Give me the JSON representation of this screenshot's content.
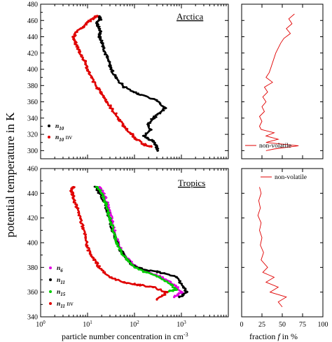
{
  "chart_data": [
    {
      "id": "arctica_main",
      "type": "scatter",
      "title": "Arctica",
      "xscale": "log",
      "xlim": [
        1,
        10000
      ],
      "ylim": [
        290,
        480
      ],
      "yticks": [
        300,
        320,
        340,
        360,
        380,
        400,
        420,
        440,
        460,
        480
      ],
      "legend_placement": "bottom-left",
      "series": [
        {
          "name": "n10",
          "name_sub": "10",
          "color": "#000000",
          "points": [
            [
              18,
              465
            ],
            [
              19,
              462
            ],
            [
              16,
              458
            ],
            [
              17,
              452
            ],
            [
              19,
              446
            ],
            [
              18,
              440
            ],
            [
              20,
              434
            ],
            [
              22,
              428
            ],
            [
              24,
              420
            ],
            [
              28,
              410
            ],
            [
              32,
              400
            ],
            [
              40,
              390
            ],
            [
              60,
              378
            ],
            [
              120,
              370
            ],
            [
              300,
              362
            ],
            [
              450,
              352
            ],
            [
              350,
              346
            ],
            [
              250,
              340
            ],
            [
              200,
              332
            ],
            [
              220,
              326
            ],
            [
              160,
              318
            ],
            [
              240,
              312
            ],
            [
              300,
              306
            ],
            [
              310,
              300
            ]
          ]
        },
        {
          "name": "n10 nv",
          "name_sub": "10",
          "name_suffix": "nv",
          "color": "#e00000",
          "points": [
            [
              16,
              465
            ],
            [
              13,
              462
            ],
            [
              10,
              458
            ],
            [
              8,
              452
            ],
            [
              6,
              446
            ],
            [
              5,
              440
            ],
            [
              5.5,
              432
            ],
            [
              6.5,
              424
            ],
            [
              7.5,
              416
            ],
            [
              9,
              408
            ],
            [
              10,
              400
            ],
            [
              12,
              390
            ],
            [
              15,
              380
            ],
            [
              20,
              370
            ],
            [
              26,
              360
            ],
            [
              34,
              350
            ],
            [
              45,
              340
            ],
            [
              60,
              330
            ],
            [
              80,
              322
            ],
            [
              110,
              314
            ],
            [
              150,
              308
            ],
            [
              230,
              305
            ]
          ]
        }
      ]
    },
    {
      "id": "arctica_fraction",
      "type": "line",
      "xlim": [
        0,
        100
      ],
      "ylim": [
        290,
        480
      ],
      "legend_placement": "bottom-right",
      "series": [
        {
          "name": "non-volatile",
          "color": "#e00000",
          "points": [
            [
              65,
              468
            ],
            [
              58,
              462
            ],
            [
              62,
              456
            ],
            [
              55,
              450
            ],
            [
              60,
              444
            ],
            [
              52,
              438
            ],
            [
              48,
              432
            ],
            [
              45,
              426
            ],
            [
              42,
              420
            ],
            [
              40,
              414
            ],
            [
              38,
              408
            ],
            [
              36,
              402
            ],
            [
              34,
              396
            ],
            [
              30,
              390
            ],
            [
              38,
              384
            ],
            [
              28,
              378
            ],
            [
              32,
              372
            ],
            [
              26,
              366
            ],
            [
              30,
              360
            ],
            [
              25,
              354
            ],
            [
              28,
              348
            ],
            [
              22,
              342
            ],
            [
              25,
              336
            ],
            [
              22,
              330
            ],
            [
              24,
              326
            ],
            [
              40,
              322
            ],
            [
              30,
              318
            ],
            [
              45,
              314
            ],
            [
              30,
              310
            ],
            [
              70,
              306
            ],
            [
              40,
              302
            ],
            [
              30,
              300
            ]
          ]
        }
      ]
    },
    {
      "id": "tropics_main",
      "type": "scatter",
      "title": "Tropics",
      "xscale": "log",
      "xlim": [
        1,
        10000
      ],
      "ylim": [
        340,
        460
      ],
      "yticks": [
        340,
        360,
        380,
        400,
        420,
        440,
        460
      ],
      "legend_placement": "bottom-left",
      "series": [
        {
          "name": "n6",
          "name_sub": "6",
          "color": "#e000e0",
          "points": [
            [
              18,
              445
            ],
            [
              22,
              440
            ],
            [
              26,
              432
            ],
            [
              30,
              424
            ],
            [
              34,
              416
            ],
            [
              38,
              408
            ],
            [
              44,
              400
            ],
            [
              55,
              392
            ],
            [
              75,
              386
            ],
            [
              110,
              380
            ],
            [
              200,
              376
            ],
            [
              400,
              372
            ],
            [
              700,
              366
            ],
            [
              1000,
              360
            ],
            [
              700,
              356
            ]
          ]
        },
        {
          "name": "n11",
          "name_sub": "11",
          "color": "#000000",
          "points": [
            [
              15,
              445
            ],
            [
              18,
              440
            ],
            [
              22,
              434
            ],
            [
              26,
              426
            ],
            [
              30,
              418
            ],
            [
              34,
              410
            ],
            [
              40,
              402
            ],
            [
              50,
              394
            ],
            [
              65,
              388
            ],
            [
              90,
              382
            ],
            [
              150,
              378
            ],
            [
              350,
              376
            ],
            [
              800,
              372
            ],
            [
              1100,
              364
            ],
            [
              1300,
              360
            ],
            [
              900,
              356
            ]
          ]
        },
        {
          "name": "n15",
          "name_sub": "15",
          "color": "#00cc00",
          "points": [
            [
              16,
              445
            ],
            [
              20,
              440
            ],
            [
              24,
              432
            ],
            [
              28,
              424
            ],
            [
              32,
              416
            ],
            [
              36,
              408
            ],
            [
              42,
              400
            ],
            [
              52,
              392
            ],
            [
              70,
              386
            ],
            [
              100,
              380
            ],
            [
              180,
              376
            ],
            [
              350,
              372
            ],
            [
              600,
              366
            ],
            [
              800,
              362
            ],
            [
              500,
              360
            ]
          ]
        },
        {
          "name": "n11 nv",
          "name_sub": "11",
          "name_suffix": "nv",
          "color": "#e00000",
          "points": [
            [
              5,
              445
            ],
            [
              4.5,
              442
            ],
            [
              5,
              436
            ],
            [
              6,
              428
            ],
            [
              7,
              420
            ],
            [
              8,
              412
            ],
            [
              9,
              404
            ],
            [
              10,
              396
            ],
            [
              12,
              390
            ],
            [
              15,
              384
            ],
            [
              20,
              378
            ],
            [
              30,
              372
            ],
            [
              60,
              368
            ],
            [
              120,
              366
            ],
            [
              250,
              364
            ],
            [
              500,
              360
            ],
            [
              300,
              354
            ]
          ]
        }
      ]
    },
    {
      "id": "tropics_fraction",
      "type": "line",
      "xlabel": "fraction f in %",
      "xlim": [
        0,
        100
      ],
      "xticks": [
        0,
        25,
        50,
        75,
        100
      ],
      "ylim": [
        340,
        460
      ],
      "legend_placement": "top-right",
      "series": [
        {
          "name": "non-volatile",
          "color": "#e00000",
          "points": [
            [
              22,
              445
            ],
            [
              24,
              440
            ],
            [
              21,
              434
            ],
            [
              23,
              428
            ],
            [
              20,
              422
            ],
            [
              24,
              416
            ],
            [
              22,
              410
            ],
            [
              25,
              404
            ],
            [
              23,
              398
            ],
            [
              27,
              392
            ],
            [
              24,
              386
            ],
            [
              32,
              380
            ],
            [
              26,
              376
            ],
            [
              40,
              372
            ],
            [
              30,
              368
            ],
            [
              45,
              364
            ],
            [
              35,
              360
            ],
            [
              55,
              356
            ],
            [
              45,
              352
            ],
            [
              50,
              348
            ]
          ]
        }
      ]
    }
  ],
  "axes": {
    "ylabel": "potential temperature in K",
    "xlabel": "particle number concentration in cm",
    "xlabel_sup": "-3",
    "fraction_xlabel_pre": "fraction ",
    "fraction_xlabel_var": "f",
    "fraction_xlabel_post": " in %",
    "log_tick_labels": [
      "10",
      "10",
      "10",
      "10",
      "10"
    ],
    "log_tick_exps": [
      "0",
      "1",
      "2",
      "3",
      ""
    ],
    "arctica_yticks": [
      "300",
      "320",
      "340",
      "360",
      "380",
      "400",
      "420",
      "440",
      "460",
      "480"
    ],
    "tropics_yticks": [
      "340",
      "360",
      "380",
      "400",
      "420",
      "440",
      "460"
    ],
    "fraction_xticks": [
      "0",
      "25",
      "50",
      "75",
      "100"
    ]
  },
  "legend": {
    "n_symbol": "n",
    "nv_suffix": " nv"
  }
}
